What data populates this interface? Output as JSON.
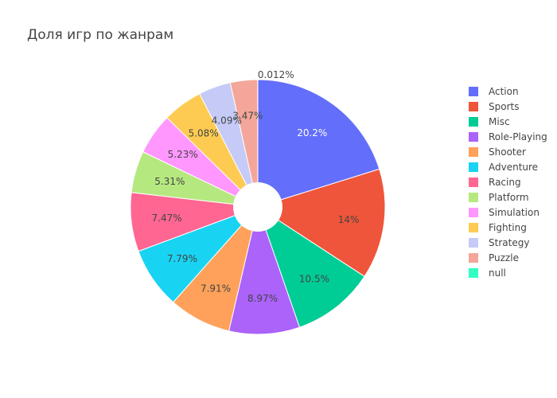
{
  "chart_data": {
    "type": "pie",
    "title": "Доля игр по жанрам",
    "hole": true,
    "legend_position": "right",
    "slices": [
      {
        "label": "Action",
        "value": 20.2,
        "display": "20.2%",
        "color": "#636efa"
      },
      {
        "label": "Sports",
        "value": 14.0,
        "display": "14%",
        "color": "#ef553b"
      },
      {
        "label": "Misc",
        "value": 10.5,
        "display": "10.5%",
        "color": "#00cc96"
      },
      {
        "label": "Role-Playing",
        "value": 8.97,
        "display": "8.97%",
        "color": "#ab63fa"
      },
      {
        "label": "Shooter",
        "value": 7.91,
        "display": "7.91%",
        "color": "#ffa15a"
      },
      {
        "label": "Adventure",
        "value": 7.79,
        "display": "7.79%",
        "color": "#19d3f3"
      },
      {
        "label": "Racing",
        "value": 7.47,
        "display": "7.47%",
        "color": "#ff6692"
      },
      {
        "label": "Platform",
        "value": 5.31,
        "display": "5.31%",
        "color": "#b6e880"
      },
      {
        "label": "Simulation",
        "value": 5.23,
        "display": "5.23%",
        "color": "#ff97ff"
      },
      {
        "label": "Fighting",
        "value": 5.08,
        "display": "5.08%",
        "color": "#fecb52"
      },
      {
        "label": "Strategy",
        "value": 4.09,
        "display": "4.09%",
        "color": "#c5caf7"
      },
      {
        "label": "Puzzle",
        "value": 3.47,
        "display": "3.47%",
        "color": "#f4a69a"
      },
      {
        "label": "null",
        "value": 0.012,
        "display": "0.012%",
        "color": "#33ffc3"
      }
    ]
  }
}
